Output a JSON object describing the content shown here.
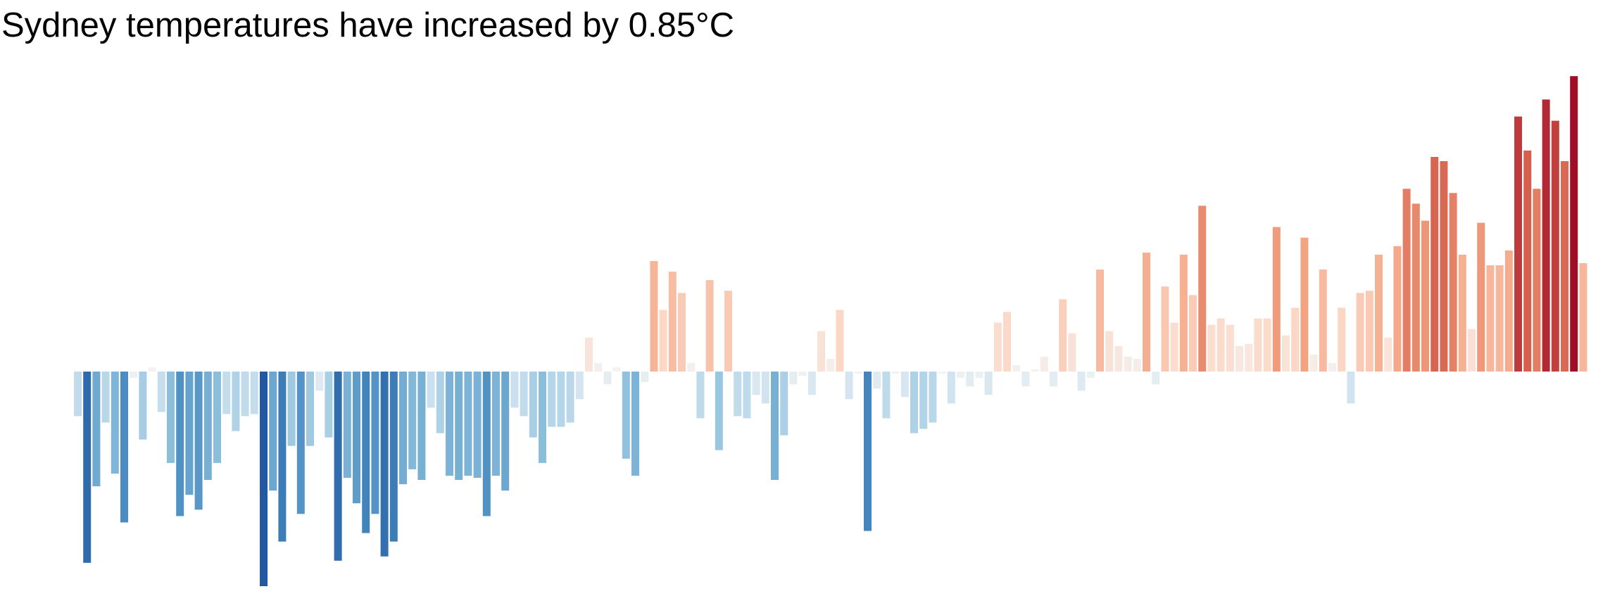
{
  "chart_data": {
    "type": "bar",
    "title": "Sydney temperatures have increased by 0.85°C",
    "xlabel": "",
    "ylabel": "",
    "grid": false,
    "legend": "none",
    "baseline": 0,
    "ylim": [
      -1.0,
      1.38
    ],
    "color_scale": {
      "type": "diverging",
      "cold_extreme": "#2158a0",
      "neutral": "#f3f3f3",
      "warm_extreme": "#9e0f27"
    },
    "values": [
      -0.21,
      -0.9,
      -0.54,
      -0.24,
      -0.48,
      -0.71,
      -0.03,
      -0.32,
      0.02,
      -0.19,
      -0.43,
      -0.68,
      -0.58,
      -0.65,
      -0.51,
      -0.43,
      -0.2,
      -0.28,
      -0.21,
      -0.2,
      -1.01,
      -0.56,
      -0.8,
      -0.35,
      -0.67,
      -0.35,
      -0.09,
      -0.31,
      -0.89,
      -0.5,
      -0.62,
      -0.76,
      -0.67,
      -0.87,
      -0.8,
      -0.53,
      -0.46,
      -0.51,
      -0.17,
      -0.29,
      -0.49,
      -0.51,
      -0.49,
      -0.5,
      -0.68,
      -0.49,
      -0.56,
      -0.17,
      -0.21,
      -0.31,
      -0.43,
      -0.26,
      -0.26,
      -0.24,
      -0.13,
      0.16,
      0.04,
      -0.06,
      0.02,
      -0.41,
      -0.49,
      -0.05,
      0.52,
      0.29,
      0.47,
      0.37,
      0.04,
      -0.22,
      0.43,
      -0.37,
      0.38,
      -0.21,
      -0.22,
      -0.11,
      -0.15,
      -0.51,
      -0.3,
      -0.06,
      -0.02,
      -0.11,
      0.19,
      0.06,
      0.29,
      -0.13,
      -0.01,
      -0.75,
      -0.08,
      -0.22,
      -0.01,
      -0.12,
      -0.29,
      -0.27,
      -0.24,
      -0.01,
      -0.15,
      -0.03,
      -0.07,
      -0.03,
      -0.11,
      0.23,
      0.28,
      0.03,
      -0.07,
      0.01,
      0.07,
      -0.07,
      0.34,
      0.18,
      -0.09,
      -0.03,
      0.48,
      0.19,
      0.12,
      0.07,
      0.06,
      0.56,
      -0.06,
      0.4,
      0.23,
      0.55,
      0.36,
      0.78,
      0.22,
      0.25,
      0.22,
      0.12,
      0.13,
      0.25,
      0.25,
      0.68,
      0.17,
      0.3,
      0.63,
      0.08,
      0.48,
      0.04,
      0.3,
      -0.15,
      0.37,
      0.38,
      0.55,
      0.16,
      0.59,
      0.86,
      0.79,
      0.71,
      1.01,
      0.99,
      0.84,
      0.55,
      0.2,
      0.7,
      0.5,
      0.5,
      0.57,
      1.2,
      1.04,
      0.86,
      1.28,
      1.18,
      0.99,
      1.39,
      0.51
    ]
  }
}
